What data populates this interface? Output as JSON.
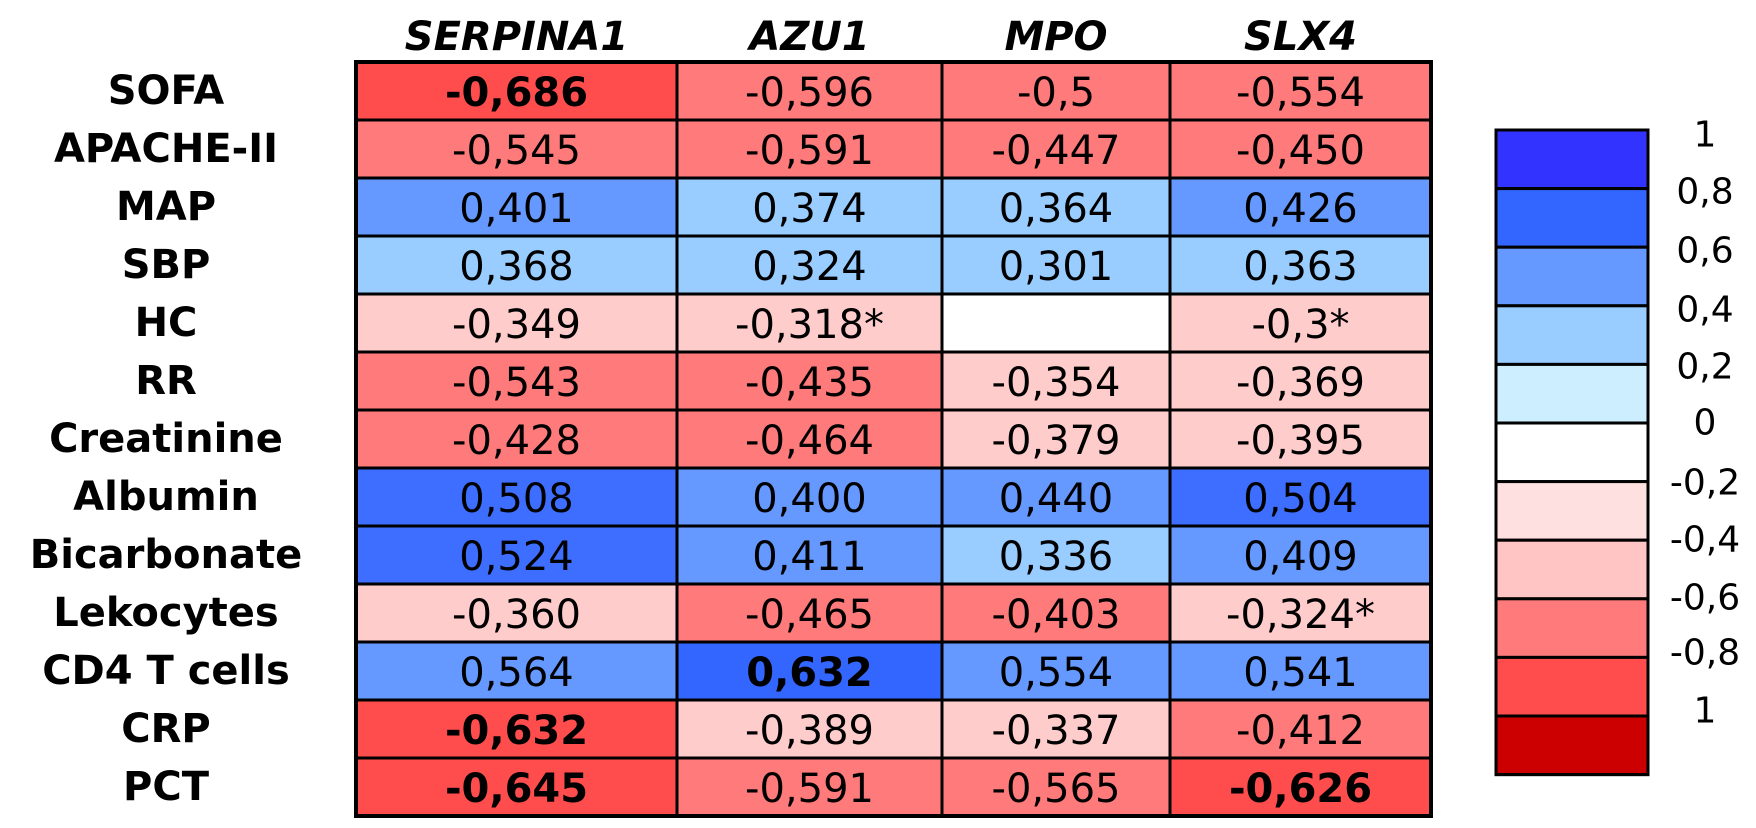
{
  "chart_data": {
    "type": "heatmap",
    "columns": [
      "SERPINA1",
      "AZU1",
      "MPO",
      "SLX4"
    ],
    "rows": [
      "SOFA",
      "APACHE-II",
      "MAP",
      "SBP",
      "HC",
      "RR",
      "Creatinine",
      "Albumin",
      "Bicarbonate",
      "Lekocytes",
      "CD4 T cells",
      "CRP",
      "PCT"
    ],
    "labels": [
      [
        "-0,686",
        "-0,596",
        "-0,5",
        "-0,554"
      ],
      [
        "-0,545",
        "-0,591",
        "-0,447",
        "-0,450"
      ],
      [
        "0,401",
        "0,374",
        "0,364",
        "0,426"
      ],
      [
        "0,368",
        "0,324",
        "0,301",
        "0,363"
      ],
      [
        "-0,349",
        "-0,318*",
        "",
        "-0,3*"
      ],
      [
        "-0,543",
        "-0,435",
        "-0,354",
        "-0,369"
      ],
      [
        "-0,428",
        "-0,464",
        "-0,379",
        "-0,395"
      ],
      [
        "0,508",
        "0,400",
        "0,440",
        "0,504"
      ],
      [
        "0,524",
        "0,411",
        "0,336",
        "0,409"
      ],
      [
        "-0,360",
        "-0,465",
        "-0,403",
        "-0,324*"
      ],
      [
        "0,564",
        "0,632",
        "0,554",
        "0,541"
      ],
      [
        "-0,632",
        "-0,389",
        "-0,337",
        "-0,412"
      ],
      [
        "-0,645",
        "-0,591",
        "-0,565",
        "-0,626"
      ]
    ],
    "values": [
      [
        -0.686,
        -0.596,
        -0.5,
        -0.554
      ],
      [
        -0.545,
        -0.591,
        -0.447,
        -0.45
      ],
      [
        0.401,
        0.374,
        0.364,
        0.426
      ],
      [
        0.368,
        0.324,
        0.301,
        0.363
      ],
      [
        -0.349,
        -0.318,
        null,
        -0.3
      ],
      [
        -0.543,
        -0.435,
        -0.354,
        -0.369
      ],
      [
        -0.428,
        -0.464,
        -0.379,
        -0.395
      ],
      [
        0.508,
        0.4,
        0.44,
        0.504
      ],
      [
        0.524,
        0.411,
        0.336,
        0.409
      ],
      [
        -0.36,
        -0.465,
        -0.403,
        -0.324
      ],
      [
        0.564,
        0.632,
        0.554,
        0.541
      ],
      [
        -0.632,
        -0.389,
        -0.337,
        -0.412
      ],
      [
        -0.645,
        -0.591,
        -0.565,
        -0.626
      ]
    ],
    "cell_colors": [
      [
        "#ff4d4d",
        "#ff7a7a",
        "#ff7a7a",
        "#ff7a7a"
      ],
      [
        "#ff7a7a",
        "#ff7a7a",
        "#ff7a7a",
        "#ff7a7a"
      ],
      [
        "#6699ff",
        "#99ccff",
        "#99ccff",
        "#6699ff"
      ],
      [
        "#99ccff",
        "#99ccff",
        "#99ccff",
        "#99ccff"
      ],
      [
        "#ffcccc",
        "#ffcccc",
        "#ffffff",
        "#ffcccc"
      ],
      [
        "#ff7a7a",
        "#ff7a7a",
        "#ffcccc",
        "#ffcccc"
      ],
      [
        "#ff7a7a",
        "#ff7a7a",
        "#ffcccc",
        "#ffcccc"
      ],
      [
        "#3d6eff",
        "#6699ff",
        "#6699ff",
        "#3d6eff"
      ],
      [
        "#3d6eff",
        "#6699ff",
        "#99ccff",
        "#6699ff"
      ],
      [
        "#ffcccc",
        "#ff7a7a",
        "#ff7a7a",
        "#ffcccc"
      ],
      [
        "#6699ff",
        "#3366ff",
        "#6699ff",
        "#6699ff"
      ],
      [
        "#ff4d4d",
        "#ffcccc",
        "#ffcccc",
        "#ff7a7a"
      ],
      [
        "#ff4d4d",
        "#ff7a7a",
        "#ff7a7a",
        "#ff4d4d"
      ]
    ],
    "bold": [
      [
        true,
        false,
        false,
        false
      ],
      [
        false,
        false,
        false,
        false
      ],
      [
        false,
        false,
        false,
        false
      ],
      [
        false,
        false,
        false,
        false
      ],
      [
        false,
        false,
        false,
        false
      ],
      [
        false,
        false,
        false,
        false
      ],
      [
        false,
        false,
        false,
        false
      ],
      [
        false,
        false,
        false,
        false
      ],
      [
        false,
        false,
        false,
        false
      ],
      [
        false,
        false,
        false,
        false
      ],
      [
        false,
        true,
        false,
        false
      ],
      [
        true,
        false,
        false,
        false
      ],
      [
        true,
        false,
        false,
        true
      ]
    ],
    "legend": {
      "tick_labels": [
        "1",
        "0,8",
        "0,6",
        "0,4",
        "0,2",
        "0",
        "-0,2",
        "-0,4",
        "-0,6",
        "-0,8",
        "1"
      ],
      "colors": [
        "#3333ff",
        "#3366ff",
        "#6699ff",
        "#99ccff",
        "#cceeff",
        "#ffffff",
        "#ffe0e0",
        "#ffc4c4",
        "#ff7a7a",
        "#ff4d4d",
        "#cc0000"
      ]
    }
  }
}
